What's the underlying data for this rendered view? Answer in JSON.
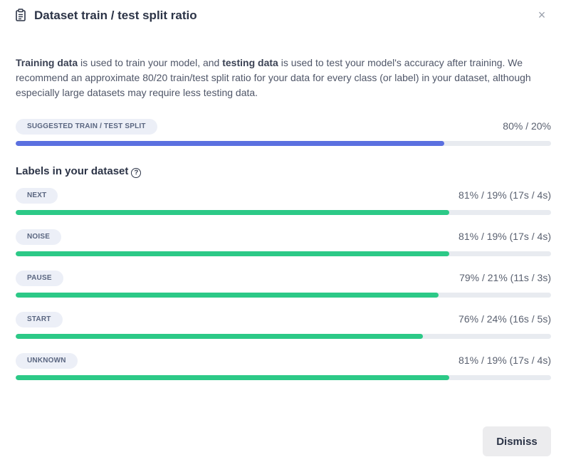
{
  "header": {
    "title": "Dataset train / test split ratio",
    "icon": "clipboard-icon",
    "close_icon": "close-icon"
  },
  "description": {
    "training_bold": "Training data",
    "part1": " is used to train your model, and ",
    "testing_bold": "testing data",
    "part2": " is used to test your model's accuracy after training. We recommend an approximate 80/20 train/test split ratio for your data for every class (or label) in your dataset, although especially large datasets may require less testing data."
  },
  "suggested": {
    "label": "SUGGESTED TRAIN / TEST SPLIT",
    "value": "80% / 20%",
    "train_fraction": 0.8,
    "color": "#5b70e0"
  },
  "labels_section": {
    "title": "Labels in your dataset",
    "help_icon": "question-circle-icon",
    "bar_color": "#2cc987",
    "items": [
      {
        "label": "NEXT",
        "value": "81% / 19% (17s / 4s)",
        "train_fraction": 0.81
      },
      {
        "label": "NOISE",
        "value": "81% / 19% (17s / 4s)",
        "train_fraction": 0.81
      },
      {
        "label": "PAUSE",
        "value": "79% / 21% (11s / 3s)",
        "train_fraction": 0.79
      },
      {
        "label": "START",
        "value": "76% / 24% (16s / 5s)",
        "train_fraction": 0.76
      },
      {
        "label": "UNKNOWN",
        "value": "81% / 19% (17s / 4s)",
        "train_fraction": 0.81
      }
    ]
  },
  "footer": {
    "dismiss_label": "Dismiss"
  }
}
